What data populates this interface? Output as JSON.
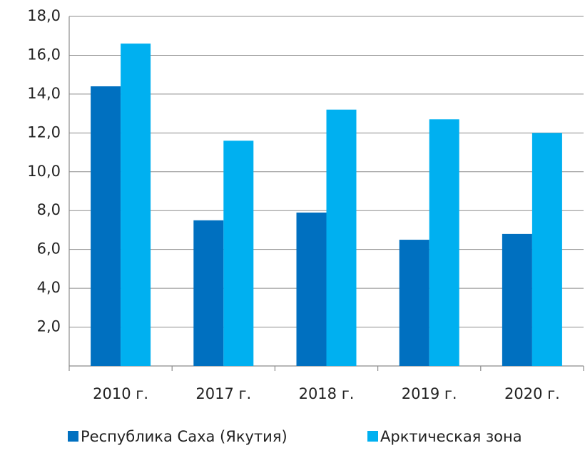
{
  "chart_data": {
    "type": "bar",
    "categories": [
      "2010 г.",
      "2017 г.",
      "2018 г.",
      "2019 г.",
      "2020 г."
    ],
    "series": [
      {
        "name": "Республика Саха (Якутия)",
        "color": "#0070c0",
        "values": [
          14.4,
          7.5,
          7.9,
          6.5,
          6.8
        ]
      },
      {
        "name": "Арктическая зона",
        "color": "#00b0f0",
        "values": [
          16.6,
          11.6,
          13.2,
          12.7,
          12.0
        ]
      }
    ],
    "ylim": [
      0,
      18
    ],
    "yticks": [
      {
        "value": 2,
        "label": "2,0"
      },
      {
        "value": 4,
        "label": "4,0"
      },
      {
        "value": 6,
        "label": "6,0"
      },
      {
        "value": 8,
        "label": "8,0"
      },
      {
        "value": 10,
        "label": "10,0"
      },
      {
        "value": 12,
        "label": "12,0"
      },
      {
        "value": 14,
        "label": "14,0"
      },
      {
        "value": 16,
        "label": "16,0"
      },
      {
        "value": 18,
        "label": "18,0"
      }
    ],
    "grid": true,
    "legend": "bottom"
  }
}
